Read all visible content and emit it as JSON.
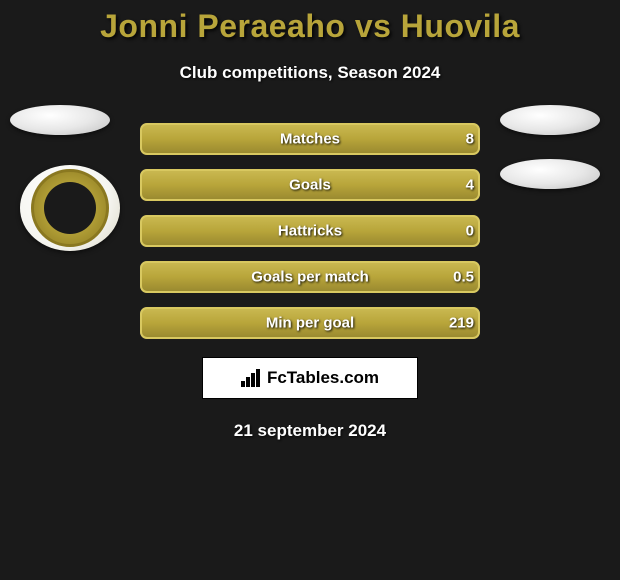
{
  "header": {
    "title": "Jonni Peraeaho vs Huovila",
    "subtitle": "Club competitions, Season 2024"
  },
  "styling": {
    "title_color": "#b8a53a",
    "text_color": "#ffffff",
    "background_color": "#1a1a1a",
    "bar_fill_color": "#b8a53a",
    "bar_bg_color": "#3a3a3a",
    "title_fontsize": 32,
    "subtitle_fontsize": 17,
    "stat_fontsize": 15
  },
  "stats": [
    {
      "label": "Matches",
      "right_value": "8",
      "fill_pct": 100,
      "fill_offset": 0
    },
    {
      "label": "Goals",
      "right_value": "4",
      "fill_pct": 100,
      "fill_offset": 0
    },
    {
      "label": "Hattricks",
      "right_value": "0",
      "fill_pct": 100,
      "fill_offset": 0
    },
    {
      "label": "Goals per match",
      "right_value": "0.5",
      "fill_pct": 100,
      "fill_offset": 0
    },
    {
      "label": "Min per goal",
      "right_value": "219",
      "fill_pct": 100,
      "fill_offset": 0
    }
  ],
  "brand": {
    "text": "FcTables.com"
  },
  "footer": {
    "date": "21 september 2024"
  }
}
